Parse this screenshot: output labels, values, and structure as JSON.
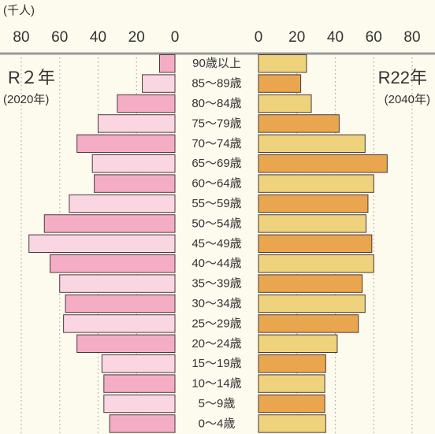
{
  "chart_data": {
    "type": "pyramid",
    "unit": "(千人)",
    "categories": [
      "90歳以上",
      "85～89歳",
      "80～84歳",
      "75～79歳",
      "70～74歳",
      "65～69歳",
      "60～64歳",
      "55～59歳",
      "50～54歳",
      "45～49歳",
      "40～44歳",
      "35～39歳",
      "30～34歳",
      "25～29歳",
      "20～24歳",
      "15～19歳",
      "10～14歳",
      "5～9歳",
      "0～4歳"
    ],
    "series": [
      {
        "name": "R２年",
        "period": "(2020年)",
        "side": "left",
        "colors": [
          "#f5adc6",
          "#fad6e2"
        ],
        "values": [
          8,
          17,
          30,
          40,
          51,
          43,
          42,
          55,
          68,
          76,
          65,
          60,
          57,
          58,
          51,
          38,
          37,
          37,
          34
        ]
      },
      {
        "name": "R22年",
        "period": "(2040年)",
        "side": "right",
        "colors": [
          "#eed27c",
          "#e9a64e"
        ],
        "values": [
          25,
          22,
          27.5,
          42,
          55.5,
          67,
          60,
          57,
          56,
          59,
          60,
          54,
          55.5,
          52,
          41,
          35,
          34.5,
          34.5,
          35
        ]
      }
    ],
    "xlim": [
      0,
      80
    ],
    "xticks": [
      0,
      20,
      40,
      60,
      80
    ],
    "grid": true
  }
}
